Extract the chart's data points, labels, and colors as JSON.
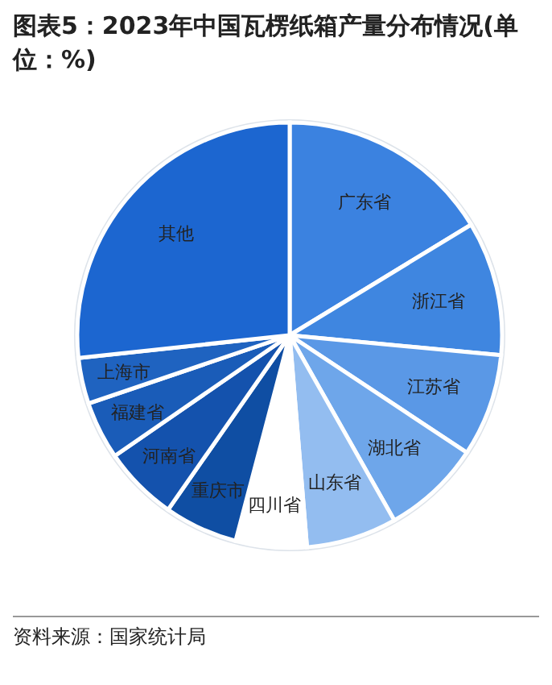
{
  "chart_data": {
    "type": "pie",
    "title": "图表5：2023年中国瓦楞纸箱产量分布情况(单位：%)",
    "categories": [
      "广东省",
      "浙江省",
      "江苏省",
      "湖北省",
      "山东省",
      "四川省",
      "重庆市",
      "河南省",
      "福建省",
      "上海市",
      "其他"
    ],
    "values": [
      16.3,
      10.2,
      7.8,
      7.5,
      6.9,
      5.4,
      5.6,
      5.7,
      4.4,
      3.5,
      26.7
    ],
    "colors": [
      "#3b82e0",
      "#3f86e0",
      "#5a98e6",
      "#6ea6ea",
      "#93bdf0",
      "#ffffff",
      "#0f4ea3",
      "#1452ad",
      "#1a5cb8",
      "#1f63c0",
      "#1c66d0"
    ],
    "annotations": [
      "资料来源：国家统计局"
    ]
  }
}
